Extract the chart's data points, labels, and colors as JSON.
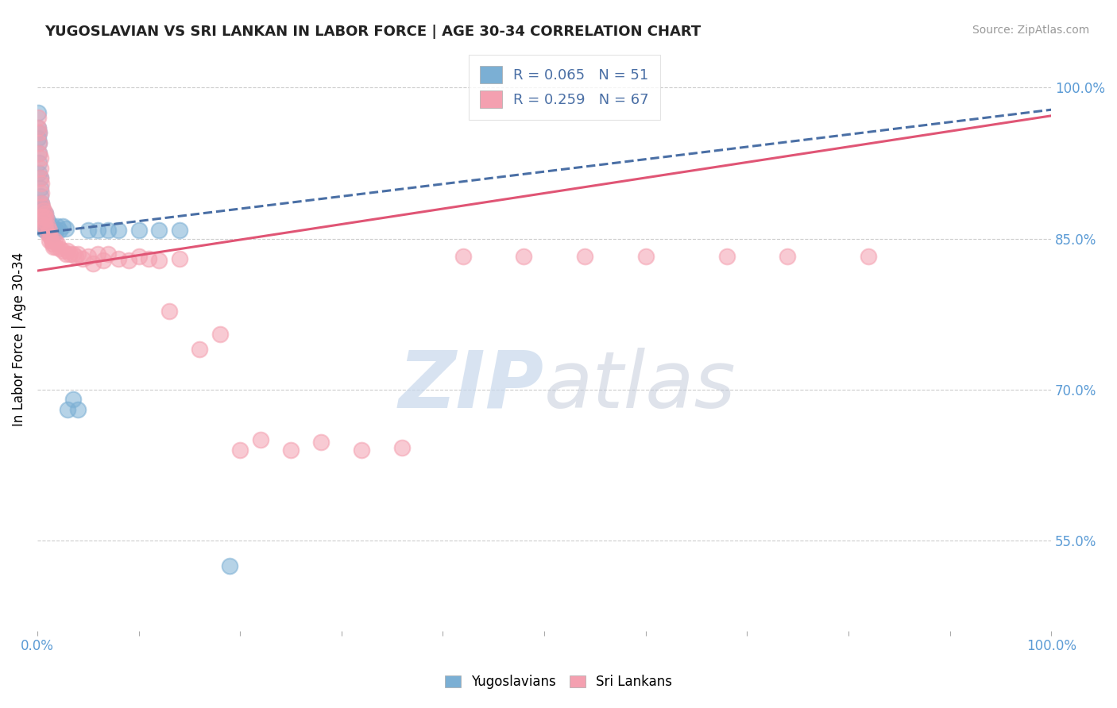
{
  "title": "YUGOSLAVIAN VS SRI LANKAN IN LABOR FORCE | AGE 30-34 CORRELATION CHART",
  "source": "Source: ZipAtlas.com",
  "ylabel": "In Labor Force | Age 30-34",
  "legend_label1": "Yugoslavians",
  "legend_label2": "Sri Lankans",
  "r1": 0.065,
  "n1": 51,
  "r2": 0.259,
  "n2": 67,
  "color_blue": "#7bafd4",
  "color_pink": "#f4a0b0",
  "color_line_blue": "#4a6fa5",
  "color_line_pink": "#e05575",
  "color_legend_text": "#4a6fa5",
  "color_source": "#999999",
  "color_watermark": "#c8d8ec",
  "color_right_axis": "#5b9bd5",
  "yticks_right": [
    0.55,
    0.7,
    0.85,
    1.0
  ],
  "ytick_labels_right": [
    "55.0%",
    "70.0%",
    "85.0%",
    "100.0%"
  ],
  "xlim": [
    0.0,
    1.0
  ],
  "ylim": [
    0.46,
    1.04
  ],
  "blue_x": [
    0.001,
    0.001,
    0.001,
    0.002,
    0.002,
    0.002,
    0.002,
    0.002,
    0.003,
    0.003,
    0.003,
    0.003,
    0.004,
    0.004,
    0.004,
    0.004,
    0.005,
    0.005,
    0.005,
    0.006,
    0.006,
    0.007,
    0.007,
    0.008,
    0.008,
    0.009,
    0.01,
    0.01,
    0.011,
    0.012,
    0.013,
    0.014,
    0.015,
    0.016,
    0.017,
    0.018,
    0.02,
    0.022,
    0.025,
    0.028,
    0.03,
    0.035,
    0.04,
    0.05,
    0.06,
    0.07,
    0.08,
    0.1,
    0.12,
    0.14,
    0.19
  ],
  "blue_y": [
    0.975,
    0.96,
    0.95,
    0.955,
    0.945,
    0.935,
    0.925,
    0.915,
    0.91,
    0.9,
    0.892,
    0.882,
    0.885,
    0.878,
    0.87,
    0.862,
    0.88,
    0.87,
    0.86,
    0.875,
    0.865,
    0.87,
    0.858,
    0.875,
    0.862,
    0.87,
    0.868,
    0.858,
    0.862,
    0.858,
    0.86,
    0.858,
    0.862,
    0.858,
    0.855,
    0.858,
    0.862,
    0.858,
    0.862,
    0.86,
    0.68,
    0.69,
    0.68,
    0.858,
    0.858,
    0.858,
    0.858,
    0.858,
    0.858,
    0.858,
    0.525
  ],
  "pink_x": [
    0.001,
    0.001,
    0.002,
    0.002,
    0.002,
    0.003,
    0.003,
    0.003,
    0.004,
    0.004,
    0.004,
    0.005,
    0.005,
    0.006,
    0.006,
    0.007,
    0.007,
    0.008,
    0.008,
    0.009,
    0.01,
    0.01,
    0.012,
    0.012,
    0.013,
    0.014,
    0.015,
    0.016,
    0.017,
    0.018,
    0.02,
    0.022,
    0.025,
    0.028,
    0.03,
    0.032,
    0.035,
    0.038,
    0.04,
    0.045,
    0.05,
    0.055,
    0.06,
    0.065,
    0.07,
    0.08,
    0.09,
    0.1,
    0.11,
    0.12,
    0.13,
    0.14,
    0.16,
    0.18,
    0.2,
    0.22,
    0.25,
    0.28,
    0.32,
    0.36,
    0.42,
    0.48,
    0.54,
    0.6,
    0.68,
    0.74,
    0.82
  ],
  "pink_y": [
    0.97,
    0.96,
    0.955,
    0.945,
    0.935,
    0.93,
    0.92,
    0.91,
    0.905,
    0.895,
    0.885,
    0.882,
    0.872,
    0.878,
    0.868,
    0.872,
    0.862,
    0.875,
    0.862,
    0.87,
    0.862,
    0.855,
    0.858,
    0.848,
    0.852,
    0.848,
    0.845,
    0.842,
    0.848,
    0.842,
    0.845,
    0.84,
    0.838,
    0.835,
    0.838,
    0.835,
    0.835,
    0.832,
    0.835,
    0.83,
    0.832,
    0.825,
    0.835,
    0.828,
    0.835,
    0.83,
    0.828,
    0.832,
    0.83,
    0.828,
    0.778,
    0.83,
    0.74,
    0.755,
    0.64,
    0.65,
    0.64,
    0.648,
    0.64,
    0.642,
    0.832,
    0.832,
    0.832,
    0.832,
    0.832,
    0.832,
    0.832
  ],
  "blue_trend": [
    0.0,
    1.0,
    0.855,
    0.978
  ],
  "pink_trend": [
    0.0,
    1.0,
    0.818,
    0.972
  ]
}
